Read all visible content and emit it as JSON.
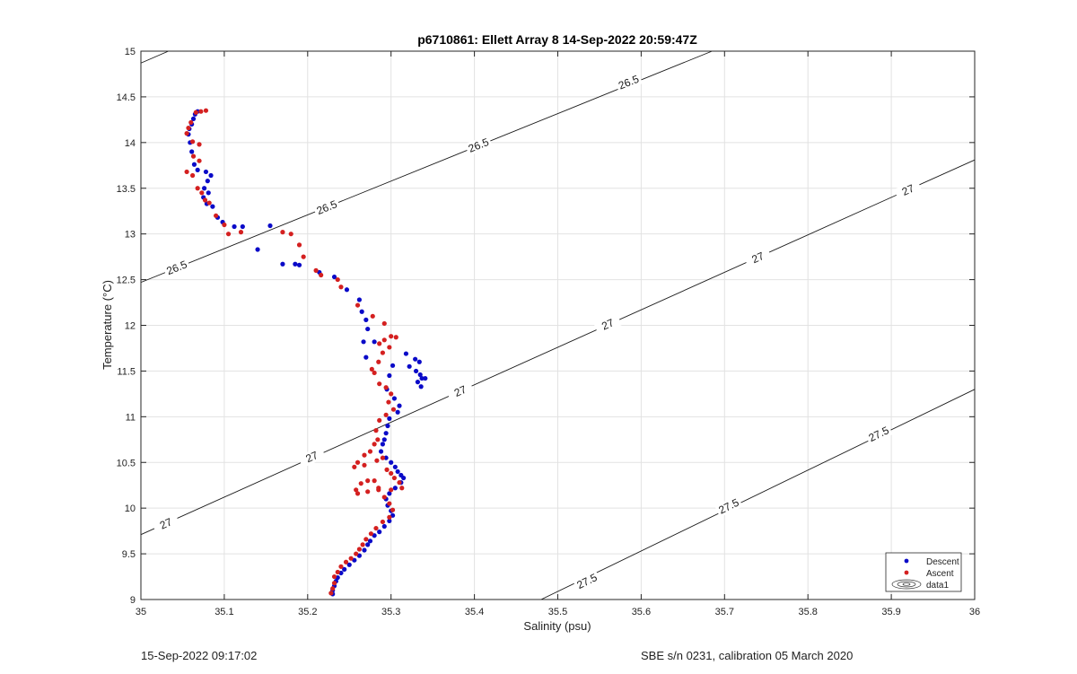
{
  "chart_data": {
    "type": "scatter",
    "title": "p6710861: Ellett Array 8 14-Sep-2022 20:59:47Z",
    "xlabel": "Salinity (psu)",
    "ylabel": "Temperature (°C)",
    "xlim": [
      35,
      36
    ],
    "ylim": [
      9,
      15
    ],
    "xticks": [
      "35",
      "35.1",
      "35.2",
      "35.3",
      "35.4",
      "35.5",
      "35.6",
      "35.7",
      "35.8",
      "35.9",
      "36"
    ],
    "yticks": [
      "9",
      "9.5",
      "10",
      "10.5",
      "11",
      "11.5",
      "12",
      "12.5",
      "13",
      "13.5",
      "14",
      "14.5",
      "15"
    ],
    "grid": true,
    "legend_position": "bottom-right",
    "legend": [
      "Descent",
      "Ascent",
      "data1"
    ],
    "contours": [
      {
        "label": "26.5",
        "points": [
          [
            35.0,
            14.87
          ],
          [
            35.033,
            15.0
          ]
        ],
        "label_positions": []
      },
      {
        "label": "26.5",
        "points": [
          [
            35.0,
            12.47
          ],
          [
            35.685,
            15.0
          ]
        ],
        "label_positions": [
          [
            35.043,
            12.63
          ],
          [
            35.223,
            13.29
          ],
          [
            35.405,
            13.97
          ],
          [
            35.585,
            14.66
          ]
        ]
      },
      {
        "label": "27",
        "points": [
          [
            35.0,
            9.71
          ],
          [
            36.0,
            13.81
          ]
        ],
        "label_positions": [
          [
            35.03,
            9.83
          ],
          [
            35.205,
            10.56
          ],
          [
            35.383,
            11.28
          ],
          [
            35.56,
            12.01
          ],
          [
            35.74,
            12.74
          ],
          [
            35.92,
            13.48
          ]
        ]
      },
      {
        "label": "27.5",
        "points": [
          [
            35.48,
            9.0
          ],
          [
            36.0,
            11.3
          ]
        ],
        "label_positions": [
          [
            35.535,
            9.2
          ],
          [
            35.705,
            10.02
          ],
          [
            35.885,
            10.81
          ]
        ]
      }
    ],
    "series": [
      {
        "name": "Descent",
        "color": "#0a0ac8",
        "points": [
          [
            35.068,
            14.34
          ],
          [
            35.065,
            14.31
          ],
          [
            35.063,
            14.26
          ],
          [
            35.061,
            14.2
          ],
          [
            35.058,
            14.15
          ],
          [
            35.057,
            14.09
          ],
          [
            35.059,
            14.0
          ],
          [
            35.061,
            13.9
          ],
          [
            35.064,
            13.76
          ],
          [
            35.068,
            13.7
          ],
          [
            35.078,
            13.68
          ],
          [
            35.084,
            13.64
          ],
          [
            35.08,
            13.58
          ],
          [
            35.076,
            13.5
          ],
          [
            35.081,
            13.45
          ],
          [
            35.075,
            13.4
          ],
          [
            35.079,
            13.33
          ],
          [
            35.086,
            13.3
          ],
          [
            35.092,
            13.18
          ],
          [
            35.098,
            13.13
          ],
          [
            35.112,
            13.08
          ],
          [
            35.122,
            13.08
          ],
          [
            35.155,
            13.09
          ],
          [
            35.14,
            12.83
          ],
          [
            35.17,
            12.67
          ],
          [
            35.185,
            12.67
          ],
          [
            35.19,
            12.66
          ],
          [
            35.214,
            12.58
          ],
          [
            35.232,
            12.53
          ],
          [
            35.247,
            12.39
          ],
          [
            35.262,
            12.28
          ],
          [
            35.265,
            12.15
          ],
          [
            35.27,
            12.06
          ],
          [
            35.272,
            11.96
          ],
          [
            35.267,
            11.82
          ],
          [
            35.28,
            11.82
          ],
          [
            35.27,
            11.65
          ],
          [
            35.318,
            11.69
          ],
          [
            35.329,
            11.63
          ],
          [
            35.334,
            11.6
          ],
          [
            35.322,
            11.55
          ],
          [
            35.33,
            11.5
          ],
          [
            35.335,
            11.46
          ],
          [
            35.337,
            11.42
          ],
          [
            35.341,
            11.42
          ],
          [
            35.332,
            11.38
          ],
          [
            35.336,
            11.33
          ],
          [
            35.302,
            11.56
          ],
          [
            35.298,
            11.45
          ],
          [
            35.295,
            11.3
          ],
          [
            35.304,
            11.2
          ],
          [
            35.31,
            11.12
          ],
          [
            35.308,
            11.05
          ],
          [
            35.298,
            10.98
          ],
          [
            35.296,
            10.9
          ],
          [
            35.294,
            10.82
          ],
          [
            35.292,
            10.75
          ],
          [
            35.29,
            10.7
          ],
          [
            35.288,
            10.62
          ],
          [
            35.294,
            10.55
          ],
          [
            35.3,
            10.5
          ],
          [
            35.305,
            10.45
          ],
          [
            35.308,
            10.4
          ],
          [
            35.312,
            10.36
          ],
          [
            35.315,
            10.33
          ],
          [
            35.312,
            10.28
          ],
          [
            35.305,
            10.22
          ],
          [
            35.298,
            10.16
          ],
          [
            35.294,
            10.1
          ],
          [
            35.296,
            10.03
          ],
          [
            35.3,
            9.97
          ],
          [
            35.302,
            9.92
          ],
          [
            35.298,
            9.86
          ],
          [
            35.292,
            9.8
          ],
          [
            35.286,
            9.74
          ],
          [
            35.28,
            9.7
          ],
          [
            35.275,
            9.64
          ],
          [
            35.272,
            9.6
          ],
          [
            35.268,
            9.54
          ],
          [
            35.262,
            9.48
          ],
          [
            35.256,
            9.43
          ],
          [
            35.25,
            9.38
          ],
          [
            35.244,
            9.33
          ],
          [
            35.24,
            9.29
          ],
          [
            35.236,
            9.24
          ],
          [
            35.234,
            9.2
          ],
          [
            35.232,
            9.15
          ],
          [
            35.23,
            9.1
          ],
          [
            35.23,
            9.06
          ]
        ]
      },
      {
        "name": "Ascent",
        "color": "#d42020",
        "points": [
          [
            35.078,
            14.35
          ],
          [
            35.072,
            14.34
          ],
          [
            35.066,
            14.33
          ],
          [
            35.06,
            14.22
          ],
          [
            35.057,
            14.16
          ],
          [
            35.055,
            14.1
          ],
          [
            35.062,
            14.01
          ],
          [
            35.07,
            13.98
          ],
          [
            35.063,
            13.85
          ],
          [
            35.07,
            13.8
          ],
          [
            35.055,
            13.68
          ],
          [
            35.062,
            13.64
          ],
          [
            35.068,
            13.5
          ],
          [
            35.073,
            13.45
          ],
          [
            35.077,
            13.37
          ],
          [
            35.082,
            13.34
          ],
          [
            35.09,
            13.2
          ],
          [
            35.1,
            13.1
          ],
          [
            35.105,
            13.0
          ],
          [
            35.12,
            13.02
          ],
          [
            35.17,
            13.02
          ],
          [
            35.18,
            13.0
          ],
          [
            35.19,
            12.88
          ],
          [
            35.195,
            12.75
          ],
          [
            35.21,
            12.6
          ],
          [
            35.216,
            12.55
          ],
          [
            35.236,
            12.5
          ],
          [
            35.24,
            12.42
          ],
          [
            35.26,
            12.22
          ],
          [
            35.278,
            12.1
          ],
          [
            35.292,
            12.02
          ],
          [
            35.3,
            11.88
          ],
          [
            35.306,
            11.87
          ],
          [
            35.292,
            11.84
          ],
          [
            35.286,
            11.8
          ],
          [
            35.298,
            11.76
          ],
          [
            35.29,
            11.7
          ],
          [
            35.285,
            11.6
          ],
          [
            35.277,
            11.52
          ],
          [
            35.28,
            11.48
          ],
          [
            35.286,
            11.36
          ],
          [
            35.294,
            11.32
          ],
          [
            35.3,
            11.25
          ],
          [
            35.297,
            11.16
          ],
          [
            35.303,
            11.08
          ],
          [
            35.294,
            11.02
          ],
          [
            35.286,
            10.96
          ],
          [
            35.282,
            10.85
          ],
          [
            35.284,
            10.75
          ],
          [
            35.28,
            10.7
          ],
          [
            35.275,
            10.62
          ],
          [
            35.268,
            10.58
          ],
          [
            35.26,
            10.5
          ],
          [
            35.256,
            10.45
          ],
          [
            35.268,
            10.47
          ],
          [
            35.283,
            10.52
          ],
          [
            35.29,
            10.55
          ],
          [
            35.295,
            10.42
          ],
          [
            35.3,
            10.38
          ],
          [
            35.304,
            10.33
          ],
          [
            35.31,
            10.28
          ],
          [
            35.313,
            10.22
          ],
          [
            35.3,
            10.2
          ],
          [
            35.285,
            10.2
          ],
          [
            35.272,
            10.18
          ],
          [
            35.26,
            10.16
          ],
          [
            35.258,
            10.2
          ],
          [
            35.264,
            10.27
          ],
          [
            35.272,
            10.3
          ],
          [
            35.28,
            10.3
          ],
          [
            35.285,
            10.22
          ],
          [
            35.292,
            10.12
          ],
          [
            35.298,
            10.05
          ],
          [
            35.302,
            9.98
          ],
          [
            35.298,
            9.9
          ],
          [
            35.29,
            9.85
          ],
          [
            35.282,
            9.78
          ],
          [
            35.276,
            9.72
          ],
          [
            35.27,
            9.66
          ],
          [
            35.266,
            9.6
          ],
          [
            35.262,
            9.55
          ],
          [
            35.258,
            9.5
          ],
          [
            35.252,
            9.45
          ],
          [
            35.246,
            9.41
          ],
          [
            35.24,
            9.36
          ],
          [
            35.236,
            9.3
          ],
          [
            35.232,
            9.25
          ],
          [
            35.232,
            9.18
          ],
          [
            35.23,
            9.12
          ],
          [
            35.228,
            9.07
          ]
        ]
      }
    ]
  },
  "footer": {
    "left": "15-Sep-2022 09:17:02",
    "right": "SBE s/n 0231, calibration 05 March 2020"
  }
}
